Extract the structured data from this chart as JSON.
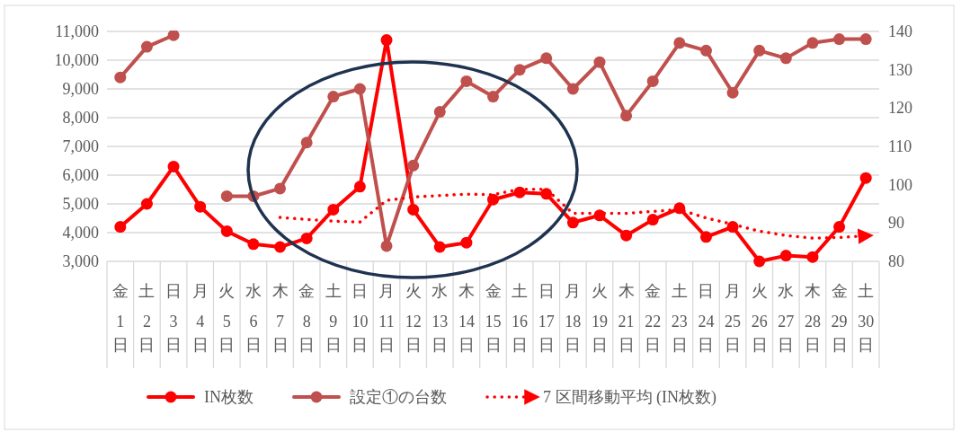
{
  "chart_data": {
    "type": "line",
    "categories": [
      "金\n1\n日",
      "土\n2\n日",
      "日\n3\n日",
      "月\n4\n日",
      "火\n5\n日",
      "水\n6\n日",
      "木\n7\n日",
      "金\n8\n日",
      "土\n9\n日",
      "日\n10\n日",
      "月\n11\n日",
      "火\n12\n日",
      "水\n13\n日",
      "木\n14\n日",
      "金\n15\n日",
      "土\n16\n日",
      "日\n17\n日",
      "月\n18\n日",
      "火\n19\n日",
      "木\n21\n日",
      "金\n22\n日",
      "土\n23\n日",
      "日\n24\n日",
      "月\n25\n日",
      "火\n26\n日",
      "水\n27\n日",
      "木\n28\n日",
      "金\n29\n日",
      "土\n30\n日"
    ],
    "ylim": [
      3000,
      11000
    ],
    "yticks": [
      {
        "value": 3000,
        "label": "3,000"
      },
      {
        "value": 4000,
        "label": "4,000"
      },
      {
        "value": 5000,
        "label": "5,000"
      },
      {
        "value": 6000,
        "label": "6,000"
      },
      {
        "value": 7000,
        "label": "7,000"
      },
      {
        "value": 8000,
        "label": "8,000"
      },
      {
        "value": 9000,
        "label": "9,000"
      },
      {
        "value": 10000,
        "label": "10,000"
      },
      {
        "value": 11000,
        "label": "11,000"
      }
    ],
    "y2lim": [
      80,
      140
    ],
    "y2ticks": [
      80,
      90,
      100,
      110,
      120,
      130,
      140
    ],
    "grid": "y",
    "legend": "bottom",
    "series": [
      {
        "name": "IN枚数",
        "color": "#ff0000",
        "marker": "circle",
        "values": [
          4200,
          5000,
          6300,
          4900,
          4050,
          3600,
          3500,
          3800,
          4800,
          5600,
          10700,
          4800,
          3500,
          3650,
          5150,
          5400,
          5350,
          4350,
          4600,
          3900,
          4450,
          4850,
          3850,
          4200,
          3000,
          3200,
          3150,
          4200,
          5900
        ]
      },
      {
        "name": "設定①の台数",
        "color": "#c0504d",
        "marker": "circle",
        "axis": "y2",
        "values": [
          128,
          136,
          139,
          null,
          97,
          97,
          99,
          111,
          123,
          125,
          84,
          105,
          119,
          127,
          123,
          130,
          133,
          125,
          132,
          118,
          127,
          137,
          135,
          124,
          135,
          133,
          137,
          138,
          138
        ]
      },
      {
        "name": "7 区間移動平均 (IN枚数)",
        "color": "#ff0000",
        "marker": "none",
        "line_style": "dotted",
        "values": [
          null,
          null,
          null,
          null,
          null,
          null,
          4530,
          4460,
          4400,
          4370,
          5120,
          5240,
          5290,
          5340,
          5320,
          5510,
          5510,
          4670,
          4670,
          4670,
          4740,
          4800,
          4510,
          4290,
          4050,
          3900,
          3810,
          3830,
          3890
        ]
      }
    ]
  }
}
